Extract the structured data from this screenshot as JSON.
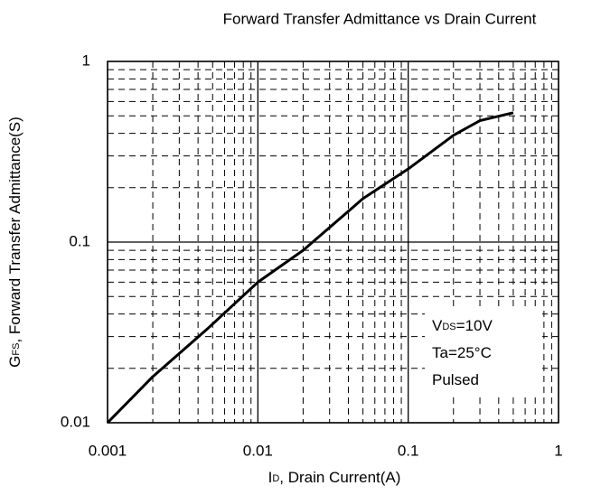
{
  "chart_data": {
    "type": "line",
    "title": "Forward Transfer Admittance vs Drain Current",
    "xlabel": {
      "main": "I",
      "sub": "D",
      "rest": ", Drain Current(A)"
    },
    "ylabel": {
      "main": "G",
      "sub": "FS",
      "rest": ", Forward Transfer Admittance(S)"
    },
    "x": [
      0.001,
      0.002,
      0.0046,
      0.01,
      0.02,
      0.05,
      0.1,
      0.2,
      0.3,
      0.5
    ],
    "series": [
      {
        "name": "GFS",
        "color": "#000000",
        "values": [
          0.01,
          0.018,
          0.033,
          0.06,
          0.09,
          0.174,
          0.254,
          0.39,
          0.47,
          0.52
        ]
      }
    ],
    "xscale": "log",
    "yscale": "log",
    "xlim": [
      0.001,
      1
    ],
    "ylim": [
      0.01,
      1
    ],
    "xticks": [
      0.001,
      0.01,
      0.1,
      1
    ],
    "yticks": [
      0.01,
      0.1,
      1
    ],
    "xminorticks": [
      0.002,
      0.003,
      0.004,
      0.005,
      0.006,
      0.007,
      0.008,
      0.009,
      0.02,
      0.03,
      0.04,
      0.05,
      0.06,
      0.07,
      0.08,
      0.09,
      0.2,
      0.3,
      0.4,
      0.5,
      0.6,
      0.7,
      0.8,
      0.9
    ],
    "yminorticks": [
      0.02,
      0.03,
      0.04,
      0.05,
      0.06,
      0.07,
      0.08,
      0.09,
      0.2,
      0.3,
      0.4,
      0.5,
      0.6,
      0.7,
      0.8,
      0.9
    ],
    "grid": true,
    "annotations": [
      {
        "main": "V",
        "sub": "DS",
        "rest": "=10V"
      },
      {
        "main": "Ta=25°C"
      },
      {
        "main": "Pulsed"
      }
    ]
  }
}
